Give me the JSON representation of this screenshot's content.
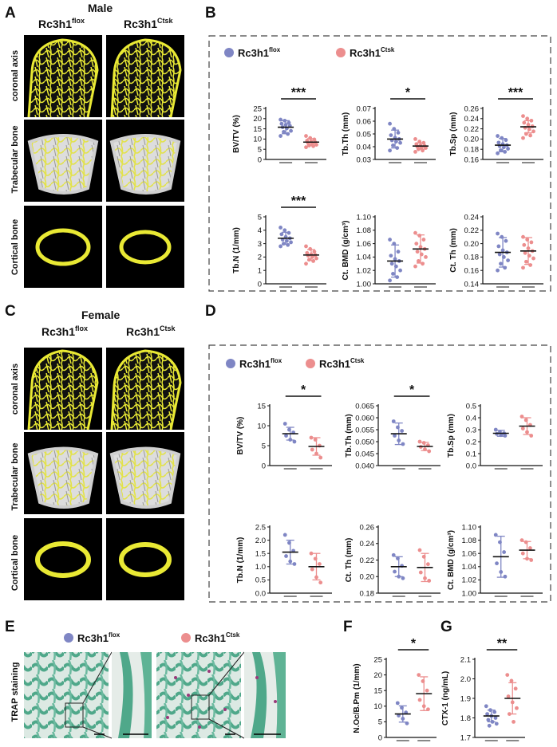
{
  "panel_labels": {
    "A": "A",
    "B": "B",
    "C": "C",
    "D": "D",
    "E": "E",
    "F": "F",
    "G": "G"
  },
  "headers": {
    "male": "Male",
    "female": "Female",
    "flox": "Rc3h1",
    "flox_sup": "flox",
    "ctsk": "Rc3h1",
    "ctsk_sup": "Ctsk"
  },
  "row_labels": {
    "coronal": "coronal axis",
    "trabecular": "Trabecular bone",
    "cortical": "Cortical bone",
    "trap": "TRAP staining"
  },
  "legend": {
    "flox": "Rc3h1",
    "flox_sup": "flox",
    "ctsk": "Rc3h1",
    "ctsk_sup": "Ctsk"
  },
  "colors": {
    "flox": "#7f86c4",
    "ctsk": "#ec8e8e",
    "bone": "#e9e934",
    "scan_bg": "#000000",
    "trab_shell": "#c9c9c9",
    "histo_green": "#4fa88a"
  },
  "chart_data": [
    {
      "id": "B1",
      "panel": "B",
      "type": "scatter",
      "ylabel": "BV/TV (%)",
      "ylim": [
        0,
        25
      ],
      "yticks": [
        0,
        5,
        10,
        15,
        20,
        25
      ],
      "sig": "***",
      "series": [
        {
          "name": "flox",
          "mean": 15.8,
          "sd": 3.2,
          "values": [
            19.5,
            19,
            18,
            17.5,
            17,
            16.5,
            15.8,
            15.2,
            14,
            13.5,
            12.5,
            11.5
          ]
        },
        {
          "name": "ctsk",
          "mean": 8.5,
          "sd": 1.7,
          "values": [
            11.5,
            10.5,
            9.8,
            9.2,
            8.8,
            8.4,
            8,
            7.6,
            7.2,
            6.8,
            6.5,
            6
          ]
        }
      ]
    },
    {
      "id": "B2",
      "panel": "B",
      "type": "scatter",
      "ylabel": "Tb.Th (mm)",
      "ylim": [
        0.03,
        0.07
      ],
      "yticks": [
        0.03,
        0.04,
        0.05,
        0.06,
        0.07
      ],
      "sig": "*",
      "series": [
        {
          "name": "flox",
          "mean": 0.046,
          "sd": 0.007,
          "values": [
            0.058,
            0.054,
            0.051,
            0.049,
            0.047,
            0.046,
            0.045,
            0.044,
            0.043,
            0.041,
            0.039,
            0.037
          ]
        },
        {
          "name": "ctsk",
          "mean": 0.0405,
          "sd": 0.0025,
          "values": [
            0.046,
            0.044,
            0.043,
            0.042,
            0.041,
            0.0405,
            0.04,
            0.0395,
            0.039,
            0.038,
            0.037,
            0.036
          ]
        }
      ]
    },
    {
      "id": "B3",
      "panel": "B",
      "type": "scatter",
      "ylabel": "Tb.Sp (mm)",
      "ylim": [
        0.16,
        0.26
      ],
      "yticks": [
        0.16,
        0.18,
        0.2,
        0.22,
        0.24,
        0.26
      ],
      "sig": "***",
      "series": [
        {
          "name": "flox",
          "mean": 0.188,
          "sd": 0.013,
          "values": [
            0.206,
            0.202,
            0.198,
            0.193,
            0.19,
            0.188,
            0.186,
            0.184,
            0.181,
            0.178,
            0.175,
            0.172
          ]
        },
        {
          "name": "ctsk",
          "mean": 0.224,
          "sd": 0.012,
          "values": [
            0.245,
            0.24,
            0.236,
            0.232,
            0.228,
            0.225,
            0.222,
            0.219,
            0.215,
            0.21,
            0.207,
            0.202
          ]
        }
      ]
    },
    {
      "id": "B4",
      "panel": "B",
      "type": "scatter",
      "ylabel": "Tb.N (1/mm)",
      "ylim": [
        0,
        5
      ],
      "yticks": [
        0,
        1,
        2,
        3,
        4,
        5
      ],
      "sig": "***",
      "series": [
        {
          "name": "flox",
          "mean": 3.4,
          "sd": 0.45,
          "values": [
            4.2,
            4,
            3.8,
            3.7,
            3.5,
            3.4,
            3.3,
            3.2,
            3.1,
            3,
            2.9,
            2.8
          ]
        },
        {
          "name": "ctsk",
          "mean": 2.15,
          "sd": 0.4,
          "values": [
            2.8,
            2.6,
            2.4,
            2.3,
            2.2,
            2.15,
            2.1,
            2,
            1.9,
            1.8,
            1.7,
            1.5
          ]
        }
      ]
    },
    {
      "id": "B5",
      "panel": "B",
      "type": "scatter",
      "ylabel": "Ct. BMD (g/cm³)",
      "ylim": [
        1,
        1.1
      ],
      "yticks": [
        1,
        1.02,
        1.04,
        1.06,
        1.08,
        1.1
      ],
      "sig": "",
      "series": [
        {
          "name": "flox",
          "mean": 1.034,
          "sd": 0.024,
          "values": [
            1.066,
            1.06,
            1.048,
            1.042,
            1.037,
            1.034,
            1.03,
            1.026,
            1.02,
            1.015,
            1.01,
            1.005
          ]
        },
        {
          "name": "ctsk",
          "mean": 1.052,
          "sd": 0.021,
          "values": [
            1.076,
            1.072,
            1.066,
            1.06,
            1.055,
            1.052,
            1.048,
            1.044,
            1.04,
            1.034,
            1.03,
            1.026
          ]
        }
      ]
    },
    {
      "id": "B6",
      "panel": "B",
      "type": "scatter",
      "ylabel": "Ct. Th (mm)",
      "ylim": [
        0.14,
        0.24
      ],
      "yticks": [
        0.14,
        0.16,
        0.18,
        0.2,
        0.22,
        0.24
      ],
      "sig": "",
      "series": [
        {
          "name": "flox",
          "mean": 0.187,
          "sd": 0.022,
          "values": [
            0.215,
            0.21,
            0.204,
            0.196,
            0.19,
            0.187,
            0.184,
            0.18,
            0.175,
            0.17,
            0.164,
            0.16
          ]
        },
        {
          "name": "ctsk",
          "mean": 0.189,
          "sd": 0.02,
          "values": [
            0.21,
            0.206,
            0.202,
            0.198,
            0.193,
            0.189,
            0.186,
            0.182,
            0.178,
            0.173,
            0.168,
            0.164
          ]
        }
      ]
    },
    {
      "id": "D1",
      "panel": "D",
      "type": "scatter",
      "ylabel": "BV/TV (%)",
      "ylim": [
        0,
        15
      ],
      "yticks": [
        0,
        5,
        10,
        15
      ],
      "sig": "*",
      "series": [
        {
          "name": "flox",
          "mean": 8,
          "sd": 1.6,
          "values": [
            10.5,
            9,
            8.3,
            7.5,
            6.5,
            6
          ]
        },
        {
          "name": "ctsk",
          "mean": 4.8,
          "sd": 2.2,
          "values": [
            7,
            6.5,
            5,
            4,
            3,
            2
          ]
        }
      ]
    },
    {
      "id": "D2",
      "panel": "D",
      "type": "scatter",
      "ylabel": "Tb.Th (mm)",
      "ylim": [
        0.04,
        0.065
      ],
      "yticks": [
        0.04,
        0.045,
        0.05,
        0.055,
        0.06,
        0.065
      ],
      "sig": "*",
      "series": [
        {
          "name": "flox",
          "mean": 0.0533,
          "sd": 0.0045,
          "values": [
            0.0585,
            0.056,
            0.0545,
            0.0525,
            0.0505,
            0.049
          ]
        },
        {
          "name": "ctsk",
          "mean": 0.048,
          "sd": 0.0017,
          "values": [
            0.05,
            0.0495,
            0.0485,
            0.0478,
            0.0468,
            0.046
          ]
        }
      ]
    },
    {
      "id": "D3",
      "panel": "D",
      "type": "scatter",
      "ylabel": "Tb.Sp (mm)",
      "ylim": [
        0,
        0.5
      ],
      "yticks": [
        0,
        0.1,
        0.2,
        0.3,
        0.4,
        0.5
      ],
      "sig": "",
      "series": [
        {
          "name": "flox",
          "mean": 0.27,
          "sd": 0.025,
          "values": [
            0.3,
            0.28,
            0.27,
            0.265,
            0.255,
            0.25
          ]
        },
        {
          "name": "ctsk",
          "mean": 0.33,
          "sd": 0.07,
          "values": [
            0.41,
            0.38,
            0.34,
            0.31,
            0.28,
            0.25
          ]
        }
      ]
    },
    {
      "id": "D4",
      "panel": "D",
      "type": "scatter",
      "ylabel": "Tb.N (1/mm)",
      "ylim": [
        0,
        2.5
      ],
      "yticks": [
        0,
        0.5,
        1,
        1.5,
        2,
        2.5
      ],
      "sig": "",
      "series": [
        {
          "name": "flox",
          "mean": 1.55,
          "sd": 0.45,
          "values": [
            2.2,
            1.9,
            1.6,
            1.4,
            1.2,
            1.1
          ]
        },
        {
          "name": "ctsk",
          "mean": 1,
          "sd": 0.5,
          "values": [
            1.5,
            1.3,
            1.1,
            0.9,
            0.6,
            0.4
          ]
        }
      ]
    },
    {
      "id": "D5",
      "panel": "D",
      "type": "scatter",
      "ylabel": "Ct. Th (mm)",
      "ylim": [
        0.18,
        0.26
      ],
      "yticks": [
        0.18,
        0.2,
        0.22,
        0.24,
        0.26
      ],
      "sig": "",
      "series": [
        {
          "name": "flox",
          "mean": 0.212,
          "sd": 0.012,
          "values": [
            0.226,
            0.222,
            0.213,
            0.206,
            0.2,
            0.198
          ]
        },
        {
          "name": "ctsk",
          "mean": 0.211,
          "sd": 0.017,
          "values": [
            0.232,
            0.224,
            0.215,
            0.205,
            0.198,
            0.195
          ]
        }
      ]
    },
    {
      "id": "D6",
      "panel": "D",
      "type": "scatter",
      "ylabel": "Ct. BMD (g/cm³)",
      "ylim": [
        1,
        1.1
      ],
      "yticks": [
        1,
        1.02,
        1.04,
        1.06,
        1.08,
        1.1
      ],
      "sig": "",
      "series": [
        {
          "name": "flox",
          "mean": 1.055,
          "sd": 0.031,
          "values": [
            1.088,
            1.077,
            1.062,
            1.045,
            1.032,
            1.025
          ]
        },
        {
          "name": "ctsk",
          "mean": 1.065,
          "sd": 0.013,
          "values": [
            1.08,
            1.077,
            1.068,
            1.06,
            1.052,
            1.05
          ]
        }
      ]
    },
    {
      "id": "F",
      "panel": "F",
      "type": "scatter",
      "ylabel": "N.Oc/B.Pm (1/mm)",
      "ylim": [
        0,
        25
      ],
      "yticks": [
        0,
        5,
        10,
        15,
        20,
        25
      ],
      "sig": "*",
      "series": [
        {
          "name": "flox",
          "mean": 7.5,
          "sd": 2.6,
          "values": [
            11,
            9.5,
            8,
            7,
            6,
            4.5
          ]
        },
        {
          "name": "ctsk",
          "mean": 14,
          "sd": 5.4,
          "values": [
            20,
            18,
            15,
            12,
            10,
            9
          ]
        }
      ]
    },
    {
      "id": "G",
      "panel": "G",
      "type": "scatter",
      "ylabel": "CTX-1 (ng/mL)",
      "ylim": [
        1.7,
        2.1
      ],
      "yticks": [
        1.7,
        1.8,
        1.9,
        2,
        2.1
      ],
      "sig": "**",
      "series": [
        {
          "name": "flox",
          "mean": 1.81,
          "sd": 0.03,
          "values": [
            1.86,
            1.84,
            1.83,
            1.82,
            1.81,
            1.8,
            1.79,
            1.78,
            1.77,
            1.76
          ]
        },
        {
          "name": "ctsk",
          "mean": 1.9,
          "sd": 0.08,
          "values": [
            2.02,
            1.99,
            1.95,
            1.91,
            1.88,
            1.85,
            1.82,
            1.78
          ]
        }
      ]
    }
  ]
}
